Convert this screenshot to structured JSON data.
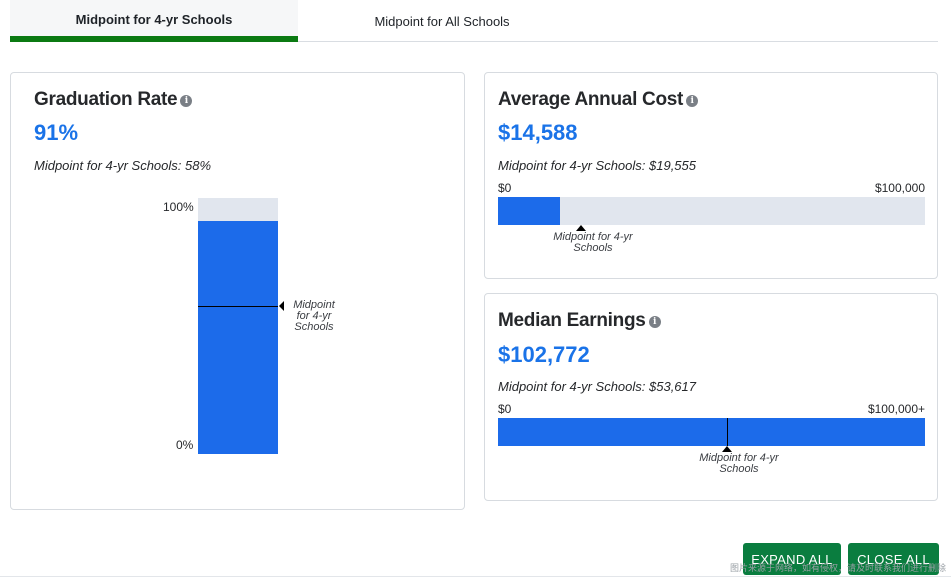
{
  "tabs": {
    "active_label": "Midpoint for 4-yr Schools",
    "inactive_label": "Midpoint for All Schools"
  },
  "graduation": {
    "title": "Graduation Rate",
    "info_icon": "i",
    "value": "91%",
    "midpoint_text": "Midpoint for 4-yr Schools: 58%",
    "rate_fraction": 0.91,
    "midpoint_fraction": 0.58,
    "axis_top": "100%",
    "axis_bottom": "0%",
    "marker_label_line1": "Midpoint",
    "marker_label_line2": "for 4-yr",
    "marker_label_line3": "Schools"
  },
  "cost": {
    "title": "Average Annual Cost",
    "info_icon": "i",
    "value": "$14,588",
    "midpoint_text": "Midpoint for 4-yr Schools: $19,555",
    "range_min": "$0",
    "range_max": "$100,000",
    "value_fraction": 0.14588,
    "midpoint_fraction": 0.19555,
    "marker_label_line1": "Midpoint for 4-yr",
    "marker_label_line2": "Schools"
  },
  "earnings": {
    "title": "Median Earnings",
    "info_icon": "i",
    "value": "$102,772",
    "midpoint_text": "Midpoint for 4-yr Schools: $53,617",
    "range_min": "$0",
    "range_max": "$100,000+",
    "value_fraction": 1.0,
    "midpoint_fraction": 0.53617,
    "marker_label_line1": "Midpoint for 4-yr",
    "marker_label_line2": "Schools"
  },
  "buttons": {
    "expand_all": "EXPAND ALL",
    "close_all": "CLOSE ALL"
  },
  "watermark": "图片来源于网络，如有侵权，请及时联系我们进行删除",
  "colors": {
    "accent_blue": "#1c6bea",
    "value_blue": "#1a73e8",
    "tab_green": "#0b7a12",
    "button_green": "#0a7d3f",
    "track_gray": "#e1e6ee"
  }
}
